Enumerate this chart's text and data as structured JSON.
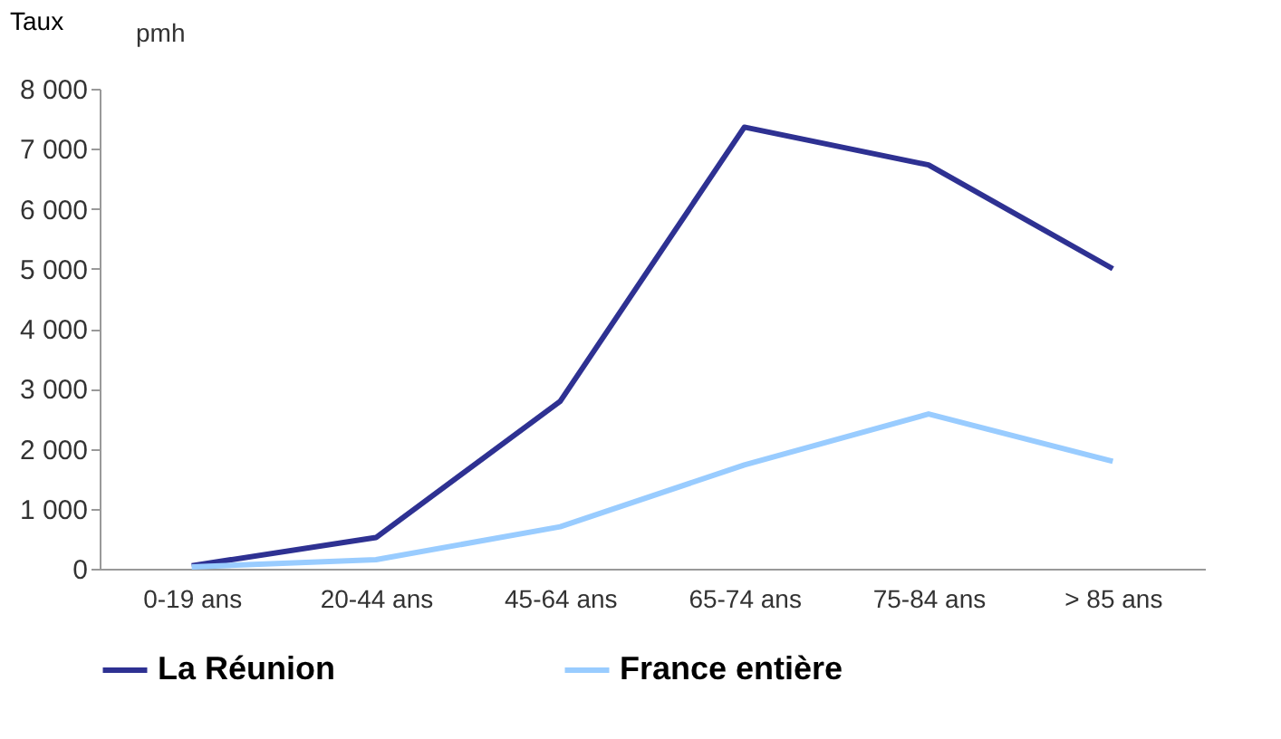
{
  "chart_data": {
    "type": "line",
    "ylabel": "Taux",
    "annotations": [
      "pmh"
    ],
    "categories": [
      "0-19 ans",
      "20-44 ans",
      "45-64 ans",
      "65-74 ans",
      "75-84 ans",
      "> 85 ans"
    ],
    "series": [
      {
        "name": "La Réunion",
        "color": "#2e3192",
        "values": [
          50,
          520,
          2790,
          7360,
          6730,
          5000
        ]
      },
      {
        "name": "France entière",
        "color": "#99ccff",
        "values": [
          30,
          150,
          700,
          1730,
          2580,
          1790
        ]
      }
    ],
    "ylim": [
      0,
      8000
    ],
    "yticks": [
      {
        "value": 0,
        "label": "0"
      },
      {
        "value": 1000,
        "label": "1 000"
      },
      {
        "value": 2000,
        "label": "2 000"
      },
      {
        "value": 3000,
        "label": "3 000"
      },
      {
        "value": 4000,
        "label": "4 000"
      },
      {
        "value": 5000,
        "label": "5 000"
      },
      {
        "value": 6000,
        "label": "6 000"
      },
      {
        "value": 7000,
        "label": "7 000"
      },
      {
        "value": 8000,
        "label": "8 000"
      }
    ],
    "grid": false,
    "legend": "bottom",
    "marker": "none",
    "line_style": "solid"
  }
}
